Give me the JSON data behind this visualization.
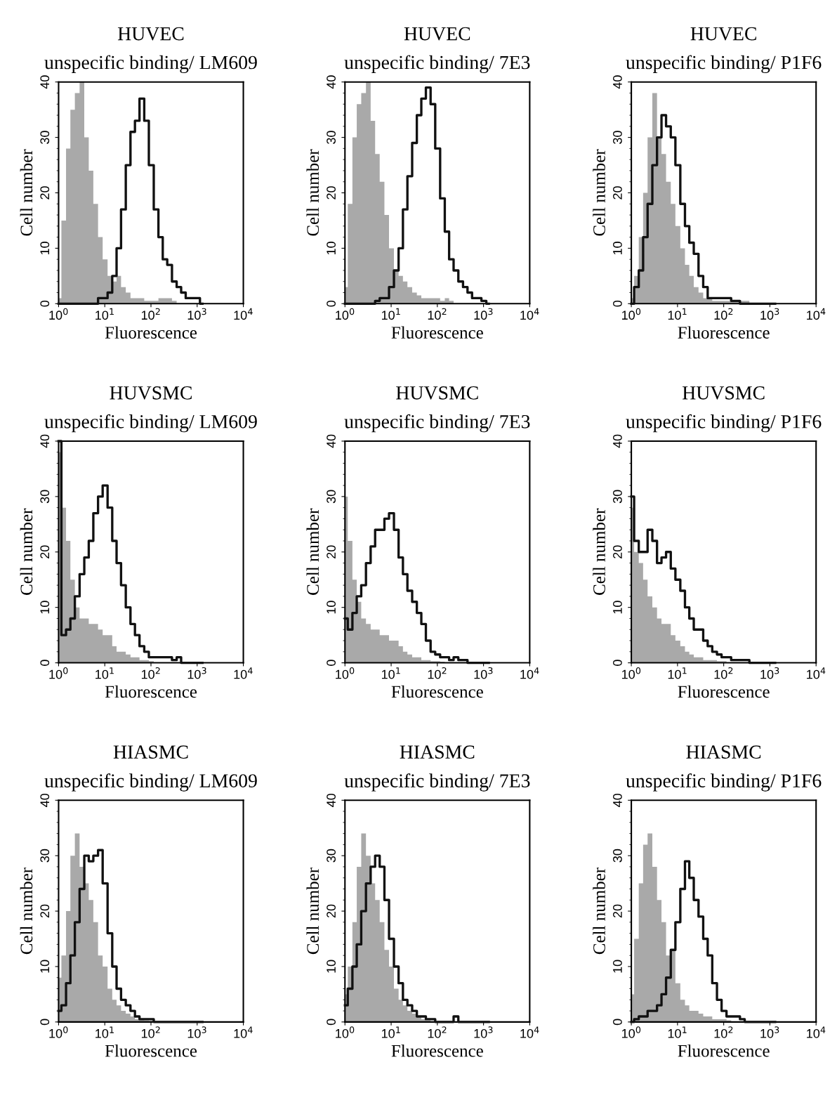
{
  "chart_data": [
    {
      "type": "area",
      "title": "HUVEC",
      "subtitle": "unspecific binding/ LM609",
      "xlabel": "Fluorescence",
      "ylabel": "Cell number",
      "log": "x",
      "grid": false,
      "xlim": [
        1,
        10000
      ],
      "ylim": [
        0,
        40
      ],
      "xticks": [
        {
          "value": 1,
          "label": "10$^{0}$"
        },
        {
          "value": 10,
          "label": "10$^{1}$"
        },
        {
          "value": 100,
          "label": "10$^{2}$"
        },
        {
          "value": 1000,
          "label": "10$^{3}$"
        },
        {
          "value": 10000,
          "label": "10$^{4}$"
        }
      ],
      "yticks": [
        0,
        10,
        20,
        30,
        40
      ],
      "x": [
        1,
        1.3,
        1.6,
        2,
        2.5,
        3.2,
        4,
        5,
        6.3,
        8,
        10,
        13,
        16,
        20,
        25,
        32,
        40,
        50,
        63,
        80,
        100,
        130,
        160,
        200,
        250,
        320,
        400,
        500,
        630,
        800,
        1000,
        1300
      ],
      "series": [
        {
          "color": "#a9a9a9",
          "values": [
            1,
            15,
            28,
            35,
            38,
            40,
            30,
            24,
            18,
            12,
            8,
            5,
            4,
            5,
            3,
            2,
            1,
            1,
            1,
            0.5,
            0.5,
            0.5,
            1,
            1,
            1,
            0.5,
            0,
            0,
            0,
            0,
            0,
            0
          ]
        },
        {
          "type": "step",
          "color": "#111111",
          "values": [
            0,
            0,
            0,
            0,
            0,
            0,
            0,
            0,
            0,
            1,
            1,
            2,
            5,
            10,
            17,
            25,
            31,
            33,
            37,
            33,
            25,
            17,
            12,
            8,
            7,
            4,
            3,
            2,
            1,
            1,
            1,
            0
          ]
        }
      ]
    },
    {
      "type": "area",
      "title": "HUVEC",
      "subtitle": "unspecific binding/ 7E3",
      "xlabel": "Fluorescence",
      "ylabel": "Cell number",
      "log": "x",
      "grid": false,
      "xlim": [
        1,
        10000
      ],
      "ylim": [
        0,
        40
      ],
      "xticks": [
        {
          "value": 1,
          "label": "10$^{0}$"
        },
        {
          "value": 10,
          "label": "10$^{1}$"
        },
        {
          "value": 100,
          "label": "10$^{2}$"
        },
        {
          "value": 1000,
          "label": "10$^{3}$"
        },
        {
          "value": 10000,
          "label": "10$^{4}$"
        }
      ],
      "yticks": [
        0,
        10,
        20,
        30,
        40
      ],
      "x": [
        1,
        1.3,
        1.6,
        2,
        2.5,
        3.2,
        4,
        5,
        6.3,
        8,
        10,
        13,
        16,
        20,
        25,
        32,
        40,
        50,
        63,
        80,
        100,
        130,
        160,
        200,
        250,
        320,
        400,
        500,
        630,
        800,
        1000,
        1300
      ],
      "series": [
        {
          "color": "#a9a9a9",
          "values": [
            3,
            18,
            30,
            36,
            38,
            40,
            33,
            27,
            22,
            16,
            10,
            6,
            5,
            4,
            3,
            2,
            1.5,
            1,
            1,
            1,
            1,
            0.5,
            1,
            0.5,
            0,
            0,
            0,
            0,
            0,
            0,
            0,
            0
          ]
        },
        {
          "type": "step",
          "color": "#111111",
          "values": [
            0,
            0,
            0,
            0,
            0,
            0,
            0,
            0.5,
            1,
            1,
            3,
            6,
            10,
            17,
            23,
            29,
            34,
            37,
            39,
            36,
            28,
            19,
            13,
            8,
            6,
            4,
            3,
            2,
            1,
            1,
            0.5,
            0
          ]
        }
      ]
    },
    {
      "type": "area",
      "title": "HUVEC",
      "subtitle": "unspecific binding/ P1F6",
      "xlabel": "Fluorescence",
      "ylabel": "Cell number",
      "log": "x",
      "grid": false,
      "xlim": [
        1,
        10000
      ],
      "ylim": [
        0,
        40
      ],
      "xticks": [
        {
          "value": 1,
          "label": "10$^{0}$"
        },
        {
          "value": 10,
          "label": "10$^{1}$"
        },
        {
          "value": 100,
          "label": "10$^{2}$"
        },
        {
          "value": 1000,
          "label": "10$^{3}$"
        },
        {
          "value": 10000,
          "label": "10$^{4}$"
        }
      ],
      "yticks": [
        0,
        10,
        20,
        30,
        40
      ],
      "x": [
        1,
        1.3,
        1.6,
        2,
        2.5,
        3.2,
        4,
        5,
        6.3,
        8,
        10,
        13,
        16,
        20,
        25,
        32,
        40,
        50,
        63,
        80,
        100,
        130,
        160,
        200,
        250,
        320,
        400,
        500,
        630,
        800,
        1000,
        1300
      ],
      "series": [
        {
          "color": "#a9a9a9",
          "values": [
            1,
            5,
            12,
            20,
            30,
            38,
            30,
            27,
            22,
            18,
            14,
            10,
            7,
            5,
            3,
            2,
            1,
            1,
            0.5,
            0.5,
            0.5,
            0.5,
            0.5,
            0.5,
            0.5,
            0.5,
            0,
            0,
            0,
            0,
            0,
            0
          ]
        },
        {
          "type": "step",
          "color": "#111111",
          "values": [
            0,
            3,
            6,
            12,
            18,
            25,
            30,
            34,
            32,
            30,
            25,
            18,
            14,
            11,
            9,
            5,
            3,
            1,
            1,
            1,
            1,
            1,
            0.5,
            0.5,
            0,
            0,
            0,
            0,
            0,
            0,
            0,
            0
          ]
        }
      ]
    },
    {
      "type": "area",
      "title": "HUVSMC",
      "subtitle": "unspecific binding/ LM609",
      "xlabel": "Fluorescence",
      "ylabel": "Cell number",
      "log": "x",
      "grid": false,
      "xlim": [
        1,
        10000
      ],
      "ylim": [
        0,
        40
      ],
      "xticks": [
        {
          "value": 1,
          "label": "10$^{0}$"
        },
        {
          "value": 10,
          "label": "10$^{1}$"
        },
        {
          "value": 100,
          "label": "10$^{2}$"
        },
        {
          "value": 1000,
          "label": "10$^{3}$"
        },
        {
          "value": 10000,
          "label": "10$^{4}$"
        }
      ],
      "yticks": [
        0,
        10,
        20,
        30,
        40
      ],
      "x": [
        1,
        1.3,
        1.6,
        2,
        2.5,
        3.2,
        4,
        5,
        6.3,
        8,
        10,
        13,
        16,
        20,
        25,
        32,
        40,
        50,
        63,
        80,
        100,
        130,
        160,
        200,
        250,
        320,
        400,
        500,
        630,
        800,
        1000,
        1300
      ],
      "series": [
        {
          "color": "#a9a9a9",
          "values": [
            38,
            28,
            22,
            15,
            10,
            8,
            8,
            7,
            7,
            6,
            5,
            5,
            3,
            2,
            2,
            1.5,
            1,
            1,
            0.5,
            0.5,
            0.3,
            0,
            0,
            0,
            0,
            0,
            0,
            0,
            0,
            0,
            0,
            0
          ]
        },
        {
          "type": "step",
          "color": "#111111",
          "values": [
            40,
            5,
            6,
            8,
            12,
            16,
            19,
            22,
            27,
            30,
            32,
            28,
            22,
            18,
            14,
            10,
            7,
            5,
            3,
            2,
            1,
            1,
            1,
            1,
            1,
            0.5,
            1,
            0,
            0,
            0,
            0,
            0
          ]
        }
      ]
    },
    {
      "type": "area",
      "title": "HUVSMC",
      "subtitle": "unspecific binding/ 7E3",
      "xlabel": "Fluorescence",
      "ylabel": "Cell number",
      "log": "x",
      "grid": false,
      "xlim": [
        1,
        10000
      ],
      "ylim": [
        0,
        40
      ],
      "xticks": [
        {
          "value": 1,
          "label": "10$^{0}$"
        },
        {
          "value": 10,
          "label": "10$^{1}$"
        },
        {
          "value": 100,
          "label": "10$^{2}$"
        },
        {
          "value": 1000,
          "label": "10$^{3}$"
        },
        {
          "value": 10000,
          "label": "10$^{4}$"
        }
      ],
      "yticks": [
        0,
        10,
        20,
        30,
        40
      ],
      "x": [
        1,
        1.3,
        1.6,
        2,
        2.5,
        3.2,
        4,
        5,
        6.3,
        8,
        10,
        13,
        16,
        20,
        25,
        32,
        40,
        50,
        63,
        80,
        100,
        130,
        160,
        200,
        250,
        320,
        400,
        500,
        630,
        800,
        1000,
        1300
      ],
      "series": [
        {
          "color": "#a9a9a9",
          "values": [
            30,
            22,
            15,
            11,
            8,
            7,
            6,
            6,
            5,
            5,
            4,
            4,
            3,
            2,
            1.5,
            1,
            1,
            0.5,
            0.5,
            0.3,
            0.3,
            0.2,
            0,
            0,
            0,
            0,
            0,
            0,
            0,
            0,
            0,
            0
          ]
        },
        {
          "type": "step",
          "color": "#111111",
          "values": [
            8,
            6,
            9,
            12,
            14,
            18,
            21,
            24,
            24,
            26,
            27,
            24,
            19,
            16,
            13,
            11,
            9,
            7,
            4,
            2,
            1.5,
            1,
            1,
            0.5,
            1,
            0.5,
            0.5,
            0,
            0,
            0,
            0,
            0
          ]
        }
      ]
    },
    {
      "type": "area",
      "title": "HUVSMC",
      "subtitle": "unspecific binding/ P1F6",
      "xlabel": "Fluorescence",
      "ylabel": "Cell number",
      "log": "x",
      "grid": false,
      "xlim": [
        1,
        10000
      ],
      "ylim": [
        0,
        40
      ],
      "xticks": [
        {
          "value": 1,
          "label": "10$^{0}$"
        },
        {
          "value": 10,
          "label": "10$^{1}$"
        },
        {
          "value": 100,
          "label": "10$^{2}$"
        },
        {
          "value": 1000,
          "label": "10$^{3}$"
        },
        {
          "value": 10000,
          "label": "10$^{4}$"
        }
      ],
      "yticks": [
        0,
        10,
        20,
        30,
        40
      ],
      "x": [
        1,
        1.3,
        1.6,
        2,
        2.5,
        3.2,
        4,
        5,
        6.3,
        8,
        10,
        13,
        16,
        20,
        25,
        32,
        40,
        50,
        63,
        80,
        100,
        130,
        160,
        200,
        250,
        320,
        400,
        500,
        630,
        800,
        1000,
        1300
      ],
      "series": [
        {
          "color": "#a9a9a9",
          "values": [
            28,
            20,
            18,
            15,
            12,
            10,
            8,
            7,
            7,
            5,
            4,
            3,
            2,
            1.5,
            1,
            1,
            0.5,
            0.5,
            0.5,
            0.3,
            0.3,
            0,
            0,
            0,
            0,
            0,
            0,
            0,
            0,
            0,
            0,
            0
          ]
        },
        {
          "type": "step",
          "color": "#111111",
          "values": [
            30,
            22,
            20,
            20,
            24,
            22,
            18,
            19,
            20,
            17,
            15,
            13,
            10,
            8,
            6,
            6,
            4,
            3,
            2,
            1.5,
            1,
            1,
            0.5,
            0.5,
            0.5,
            0.5,
            0,
            0,
            0,
            0,
            0,
            0
          ]
        }
      ]
    },
    {
      "type": "area",
      "title": "HIASMC",
      "subtitle": "unspecific binding/ LM609",
      "xlabel": "Fluorescence",
      "ylabel": "Cell number",
      "log": "x",
      "grid": false,
      "xlim": [
        1,
        10000
      ],
      "ylim": [
        0,
        40
      ],
      "xticks": [
        {
          "value": 1,
          "label": "10$^{0}$"
        },
        {
          "value": 10,
          "label": "10$^{1}$"
        },
        {
          "value": 100,
          "label": "10$^{2}$"
        },
        {
          "value": 1000,
          "label": "10$^{3}$"
        },
        {
          "value": 10000,
          "label": "10$^{4}$"
        }
      ],
      "yticks": [
        0,
        10,
        20,
        30,
        40
      ],
      "x": [
        1,
        1.3,
        1.6,
        2,
        2.5,
        3.2,
        4,
        5,
        6.3,
        8,
        10,
        13,
        16,
        20,
        25,
        32,
        40,
        50,
        63,
        80,
        100,
        130,
        160,
        200,
        250,
        320,
        400,
        500,
        630,
        800,
        1000,
        1300
      ],
      "series": [
        {
          "color": "#a9a9a9",
          "values": [
            8,
            12,
            20,
            30,
            34,
            28,
            25,
            22,
            18,
            12,
            10,
            6,
            4,
            3,
            2,
            1.5,
            1,
            0.5,
            0.5,
            0.3,
            0.2,
            0,
            0,
            0,
            0,
            0,
            0,
            0,
            0,
            0,
            0,
            0
          ]
        },
        {
          "type": "step",
          "color": "#111111",
          "values": [
            2,
            3,
            7,
            12,
            18,
            24,
            30,
            29,
            30,
            31,
            25,
            16,
            10,
            6,
            4,
            3,
            2,
            1,
            0.5,
            0.5,
            0.5,
            0,
            0,
            0,
            0,
            0,
            0,
            0,
            0,
            0,
            0,
            0
          ]
        }
      ]
    },
    {
      "type": "area",
      "title": "HIASMC",
      "subtitle": "unspecific binding/ 7E3",
      "xlabel": "Fluorescence",
      "ylabel": "Cell number",
      "log": "x",
      "grid": false,
      "xlim": [
        1,
        10000
      ],
      "ylim": [
        0,
        40
      ],
      "xticks": [
        {
          "value": 1,
          "label": "10$^{0}$"
        },
        {
          "value": 10,
          "label": "10$^{1}$"
        },
        {
          "value": 100,
          "label": "10$^{2}$"
        },
        {
          "value": 1000,
          "label": "10$^{3}$"
        },
        {
          "value": 10000,
          "label": "10$^{4}$"
        }
      ],
      "yticks": [
        0,
        10,
        20,
        30,
        40
      ],
      "x": [
        1,
        1.3,
        1.6,
        2,
        2.5,
        3.2,
        4,
        5,
        6.3,
        8,
        10,
        13,
        16,
        20,
        25,
        32,
        40,
        50,
        63,
        80,
        100,
        130,
        160,
        200,
        250,
        320,
        400,
        500,
        630,
        800,
        1000,
        1300
      ],
      "series": [
        {
          "color": "#a9a9a9",
          "values": [
            5,
            10,
            18,
            28,
            34,
            30,
            25,
            22,
            18,
            13,
            10,
            6,
            4,
            3,
            2,
            1.5,
            1,
            0.5,
            0.3,
            0,
            0,
            0,
            0,
            0,
            0,
            0,
            0,
            0,
            0,
            0,
            0,
            0
          ]
        },
        {
          "type": "step",
          "color": "#111111",
          "values": [
            3,
            6,
            10,
            14,
            20,
            25,
            28,
            30,
            28,
            22,
            15,
            10,
            7,
            4,
            3,
            2,
            1,
            1,
            0.5,
            0.5,
            0,
            0,
            0,
            0,
            1,
            0,
            0,
            0,
            0,
            0,
            0,
            0
          ]
        }
      ]
    },
    {
      "type": "area",
      "title": "HIASMC",
      "subtitle": "unspecific binding/ P1F6",
      "xlabel": "Fluorescence",
      "ylabel": "Cell number",
      "log": "x",
      "grid": false,
      "xlim": [
        1,
        10000
      ],
      "ylim": [
        0,
        40
      ],
      "xticks": [
        {
          "value": 1,
          "label": "10$^{0}$"
        },
        {
          "value": 10,
          "label": "10$^{1}$"
        },
        {
          "value": 100,
          "label": "10$^{2}$"
        },
        {
          "value": 1000,
          "label": "10$^{3}$"
        },
        {
          "value": 10000,
          "label": "10$^{4}$"
        }
      ],
      "yticks": [
        0,
        10,
        20,
        30,
        40
      ],
      "x": [
        1,
        1.3,
        1.6,
        2,
        2.5,
        3.2,
        4,
        5,
        6.3,
        8,
        10,
        13,
        16,
        20,
        25,
        32,
        40,
        50,
        63,
        80,
        100,
        130,
        160,
        200,
        250,
        320,
        400,
        500,
        630,
        800,
        1000,
        1300
      ],
      "series": [
        {
          "color": "#a9a9a9",
          "values": [
            5,
            15,
            25,
            32,
            34,
            28,
            22,
            18,
            12,
            13,
            7,
            4,
            3,
            2,
            2,
            1.5,
            1,
            1,
            0.5,
            0.5,
            0.5,
            0.3,
            0,
            0,
            0,
            0,
            0,
            0,
            0,
            0,
            0,
            0
          ]
        },
        {
          "type": "step",
          "color": "#111111",
          "values": [
            0,
            0.5,
            1,
            1,
            2,
            2,
            3,
            5,
            8,
            13,
            18,
            24,
            29,
            26,
            22,
            19,
            15,
            12,
            7,
            4,
            2,
            1,
            1,
            1,
            0.5,
            0,
            0,
            0,
            0,
            0,
            0,
            0
          ]
        }
      ]
    }
  ]
}
